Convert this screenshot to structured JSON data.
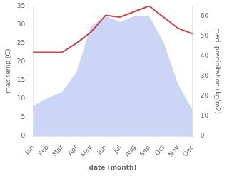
{
  "chart_data": {
    "type": "line",
    "categories": [
      "Jan",
      "Feb",
      "Mar",
      "Apr",
      "May",
      "Jun",
      "Jul",
      "Aug",
      "Sep",
      "Oct",
      "Nov",
      "Dec"
    ],
    "series": [
      {
        "type": "area",
        "color": "#ccd5f5",
        "axis": "y2",
        "values": [
          15,
          19,
          22,
          32,
          55,
          60,
          57,
          60,
          60,
          47,
          26,
          13
        ]
      },
      {
        "type": "line",
        "color": "#cc4444",
        "values": [
          22.5,
          22.5,
          22.5,
          25.0,
          28.0,
          32.5,
          32.0,
          33.5,
          35.0,
          32.0,
          29.0,
          27.5
        ]
      }
    ],
    "xlabel": "date (month)",
    "ylabel": "max temp (C)",
    "y2label": "med. precipitation (kg/m2)",
    "ylim": [
      0,
      35
    ],
    "yticks": [
      0,
      5,
      10,
      15,
      20,
      25,
      30,
      35
    ],
    "y2lim": [
      0,
      65
    ],
    "y2ticks": [
      0,
      10,
      20,
      30,
      40,
      50,
      60
    ],
    "grid": false
  }
}
